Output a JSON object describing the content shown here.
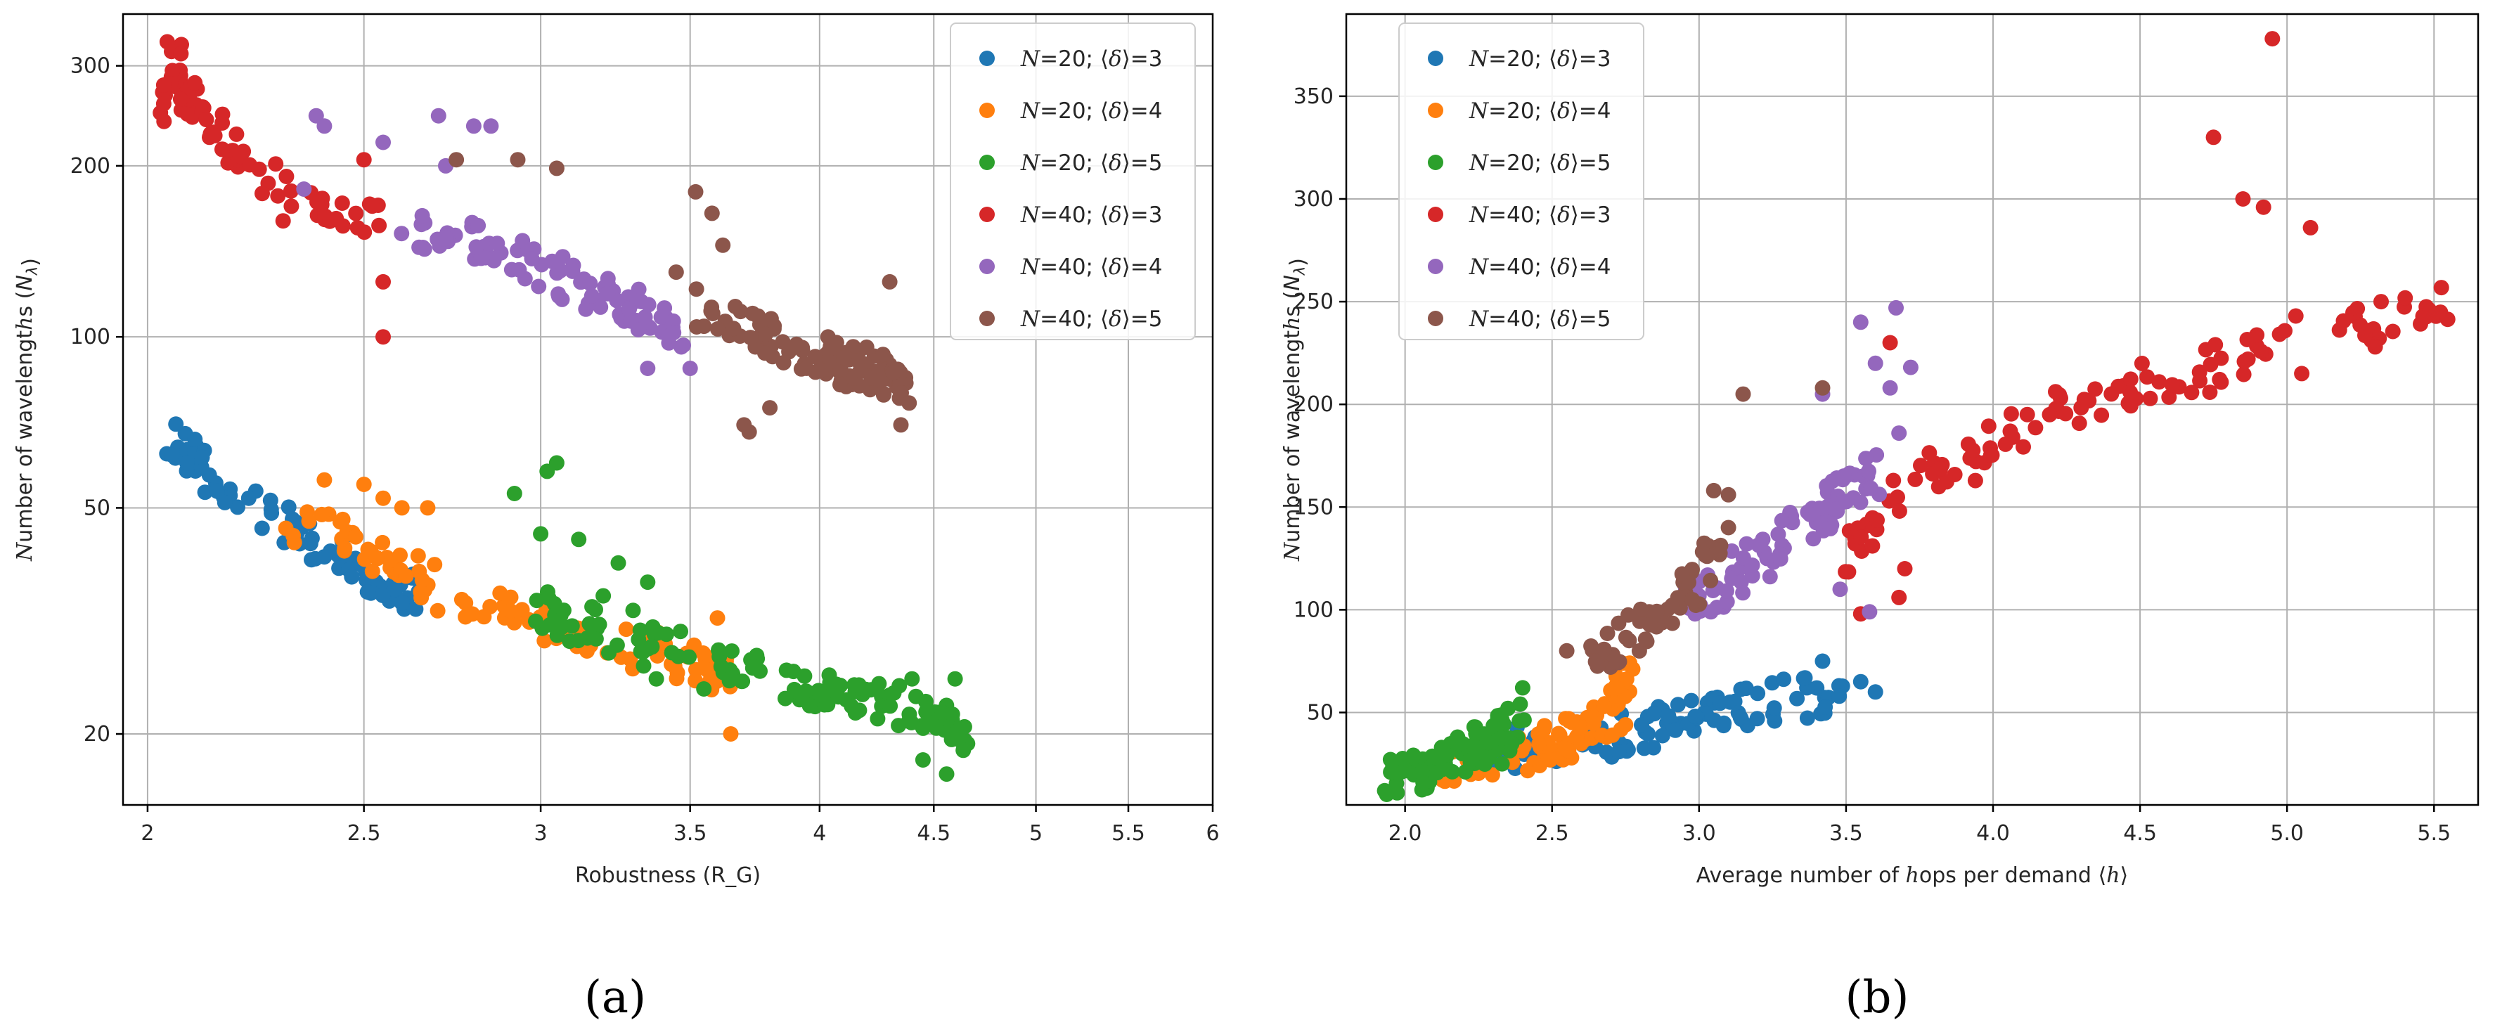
{
  "figure": {
    "panel_a_label": "(a)",
    "panel_b_label": "(b)"
  },
  "colors": {
    "N20_d3": "#1f77b4",
    "N20_d4": "#ff7f0e",
    "N20_d5": "#2ca02c",
    "N40_d3": "#d62728",
    "N40_d4": "#9467bd",
    "N40_d5": "#8c564b"
  },
  "chart_data": [
    {
      "type": "scatter",
      "panel": "(a)",
      "xscale": "log",
      "yscale": "log",
      "xlabel": "Robustness (R_G)",
      "ylabel": "Number of wavelengths (N_λ)",
      "xlim": [
        1.95,
        6.0
      ],
      "ylim": [
        15,
        370
      ],
      "xticks": [
        2,
        2.5,
        3,
        3.5,
        4,
        4.5,
        5,
        5.5,
        6
      ],
      "xtick_labels": [
        "2",
        "2.5",
        "3",
        "3.5",
        "4",
        "4.5",
        "5",
        "5.5",
        "6"
      ],
      "yticks": [
        20,
        50,
        100,
        200,
        300
      ],
      "ytick_labels": [
        "20",
        "50",
        "100",
        "200",
        "300"
      ],
      "grid": true,
      "legend_position": "top-right",
      "series": [
        {
          "name": "N=20; ⟨δ⟩=3",
          "color_key": "N20_d3",
          "count": 80,
          "anchors": [
            [
              2.05,
              62
            ],
            [
              2.08,
              65
            ],
            [
              2.1,
              60
            ],
            [
              2.15,
              55
            ],
            [
              2.2,
              52
            ],
            [
              2.3,
              47
            ],
            [
              2.35,
              44
            ],
            [
              2.4,
              42
            ],
            [
              2.45,
              40
            ],
            [
              2.5,
              38
            ],
            [
              2.55,
              37
            ],
            [
              2.6,
              36
            ],
            [
              2.63,
              35
            ]
          ],
          "outliers": [
            [
              2.05,
              62
            ],
            [
              2.1,
              66
            ],
            [
              2.22,
              52
            ],
            [
              2.4,
              41
            ],
            [
              2.6,
              34
            ]
          ]
        },
        {
          "name": "N=20; ⟨δ⟩=4",
          "color_key": "N20_d4",
          "count": 110,
          "anchors": [
            [
              2.3,
              48
            ],
            [
              2.45,
              44
            ],
            [
              2.55,
              40
            ],
            [
              2.65,
              37
            ],
            [
              2.75,
              35
            ],
            [
              2.9,
              33
            ],
            [
              3.05,
              31
            ],
            [
              3.2,
              30
            ],
            [
              3.35,
              28
            ],
            [
              3.5,
              27
            ],
            [
              3.6,
              26
            ],
            [
              3.66,
              26
            ]
          ],
          "outliers": [
            [
              2.4,
              56
            ],
            [
              2.5,
              55
            ],
            [
              2.55,
              52
            ],
            [
              2.6,
              50
            ],
            [
              2.67,
              50
            ],
            [
              3.6,
              32
            ],
            [
              3.65,
              20
            ],
            [
              2.45,
              42
            ]
          ]
        },
        {
          "name": "N=20; ⟨δ⟩=5",
          "color_key": "N20_d5",
          "count": 140,
          "anchors": [
            [
              3.0,
              33
            ],
            [
              3.2,
              30
            ],
            [
              3.4,
              28
            ],
            [
              3.6,
              27
            ],
            [
              3.8,
              25
            ],
            [
              4.0,
              24
            ],
            [
              4.2,
              23
            ],
            [
              4.4,
              22
            ],
            [
              4.55,
              21
            ],
            [
              4.65,
              20
            ]
          ],
          "outliers": [
            [
              2.92,
              53
            ],
            [
              3.02,
              58
            ],
            [
              3.05,
              60
            ],
            [
              3.0,
              45
            ],
            [
              3.12,
              44
            ],
            [
              3.25,
              40
            ],
            [
              3.35,
              37
            ],
            [
              3.38,
              25
            ],
            [
              3.55,
              24
            ],
            [
              4.45,
              18
            ],
            [
              4.56,
              17
            ],
            [
              4.6,
              25
            ],
            [
              4.4,
              25
            ],
            [
              3.3,
              33
            ],
            [
              3.2,
              35
            ]
          ]
        },
        {
          "name": "N=40; ⟨δ⟩=3",
          "color_key": "N40_d3",
          "count": 75,
          "anchors": [
            [
              2.03,
              250
            ],
            [
              2.05,
              310
            ],
            [
              2.1,
              260
            ],
            [
              2.15,
              230
            ],
            [
              2.2,
              205
            ],
            [
              2.3,
              185
            ],
            [
              2.4,
              170
            ],
            [
              2.5,
              160
            ],
            [
              2.55,
              155
            ]
          ],
          "outliers": [
            [
              2.05,
              318
            ],
            [
              2.07,
              315
            ],
            [
              2.5,
              205
            ],
            [
              2.55,
              125
            ],
            [
              2.55,
              100
            ],
            [
              2.3,
              160
            ],
            [
              2.1,
              280
            ]
          ]
        },
        {
          "name": "N=40; ⟨δ⟩=4",
          "color_key": "N40_d4",
          "count": 90,
          "anchors": [
            [
              2.6,
              160
            ],
            [
              2.75,
              150
            ],
            [
              2.9,
              142
            ],
            [
              3.0,
              132
            ],
            [
              3.1,
              125
            ],
            [
              3.2,
              118
            ],
            [
              3.3,
              112
            ],
            [
              3.4,
              106
            ],
            [
              3.5,
              100
            ]
          ],
          "outliers": [
            [
              2.38,
              245
            ],
            [
              2.4,
              235
            ],
            [
              2.55,
              220
            ],
            [
              2.7,
              245
            ],
            [
              2.8,
              235
            ],
            [
              2.85,
              235
            ],
            [
              2.72,
              200
            ],
            [
              3.35,
              88
            ],
            [
              3.5,
              88
            ],
            [
              2.35,
              182
            ]
          ]
        },
        {
          "name": "N=40; ⟨δ⟩=5",
          "color_key": "N40_d5",
          "count": 110,
          "anchors": [
            [
              3.5,
              115
            ],
            [
              3.65,
              105
            ],
            [
              3.8,
              100
            ],
            [
              3.95,
              95
            ],
            [
              4.1,
              90
            ],
            [
              4.2,
              87
            ],
            [
              4.3,
              85
            ],
            [
              4.4,
              82
            ]
          ],
          "outliers": [
            [
              2.75,
              205
            ],
            [
              2.93,
              205
            ],
            [
              3.05,
              198
            ],
            [
              3.52,
              180
            ],
            [
              3.58,
              165
            ],
            [
              3.62,
              145
            ],
            [
              3.7,
              70
            ],
            [
              3.72,
              68
            ],
            [
              4.35,
              70
            ],
            [
              4.3,
              125
            ],
            [
              3.45,
              130
            ],
            [
              3.8,
              75
            ]
          ]
        }
      ]
    },
    {
      "type": "scatter",
      "panel": "(b)",
      "xscale": "linear",
      "yscale": "linear",
      "xlabel": "Average number of hops per demand ⟨h⟩",
      "ylabel": "Number of wavelengths (N_λ)",
      "xlim": [
        1.8,
        5.65
      ],
      "ylim": [
        5,
        390
      ],
      "xticks": [
        2.0,
        2.5,
        3.0,
        3.5,
        4.0,
        4.5,
        5.0,
        5.5
      ],
      "xtick_labels": [
        "2.0",
        "2.5",
        "3.0",
        "3.5",
        "4.0",
        "4.5",
        "5.0",
        "5.5"
      ],
      "yticks": [
        50,
        100,
        150,
        200,
        250,
        300,
        350
      ],
      "ytick_labels": [
        "50",
        "100",
        "150",
        "200",
        "250",
        "300",
        "350"
      ],
      "grid": true,
      "legend_position": "top-left",
      "series": [
        {
          "name": "N=20; ⟨δ⟩=3",
          "color_key": "N20_d3",
          "count": 90,
          "anchors": [
            [
              2.3,
              32
            ],
            [
              2.5,
              34
            ],
            [
              2.7,
              38
            ],
            [
              2.9,
              44
            ],
            [
              3.1,
              52
            ],
            [
              3.3,
              57
            ],
            [
              3.5,
              58
            ]
          ],
          "outliers": [
            [
              3.42,
              75
            ],
            [
              3.55,
              65
            ],
            [
              3.6,
              60
            ]
          ]
        },
        {
          "name": "N=20; ⟨δ⟩=4",
          "color_key": "N20_d4",
          "count": 90,
          "anchors": [
            [
              2.1,
              20
            ],
            [
              2.3,
              27
            ],
            [
              2.45,
              33
            ],
            [
              2.55,
              38
            ],
            [
              2.65,
              43
            ],
            [
              2.72,
              50
            ],
            [
              2.75,
              68
            ]
          ],
          "outliers": [
            [
              2.74,
              74
            ],
            [
              2.72,
              62
            ],
            [
              2.75,
              44
            ]
          ]
        },
        {
          "name": "N=20; ⟨δ⟩=5",
          "color_key": "N20_d5",
          "count": 90,
          "anchors": [
            [
              1.95,
              18
            ],
            [
              2.05,
              22
            ],
            [
              2.15,
              26
            ],
            [
              2.25,
              32
            ],
            [
              2.32,
              40
            ],
            [
              2.38,
              48
            ]
          ],
          "outliers": [
            [
              2.35,
              52
            ],
            [
              2.4,
              62
            ],
            [
              2.33,
              25
            ]
          ]
        },
        {
          "name": "N=40; ⟨δ⟩=3",
          "color_key": "N40_d3",
          "count": 120,
          "anchors": [
            [
              3.5,
              120
            ],
            [
              3.7,
              160
            ],
            [
              3.9,
              172
            ],
            [
              4.1,
              190
            ],
            [
              4.3,
              200
            ],
            [
              4.5,
              210
            ],
            [
              4.7,
              215
            ],
            [
              4.9,
              225
            ],
            [
              5.3,
              240
            ],
            [
              5.55,
              252
            ]
          ],
          "outliers": [
            [
              4.95,
              378
            ],
            [
              4.75,
              330
            ],
            [
              4.85,
              300
            ],
            [
              4.92,
              296
            ],
            [
              5.08,
              286
            ],
            [
              3.65,
              230
            ],
            [
              3.68,
              106
            ],
            [
              3.7,
              120
            ],
            [
              3.55,
              98
            ],
            [
              5.03,
              243
            ],
            [
              5.32,
              250
            ],
            [
              5.3,
              228
            ],
            [
              5.05,
              215
            ]
          ]
        },
        {
          "name": "N=40; ⟨δ⟩=4",
          "color_key": "N40_d4",
          "count": 85,
          "anchors": [
            [
              2.95,
              100
            ],
            [
              3.1,
              115
            ],
            [
              3.2,
              125
            ],
            [
              3.3,
              135
            ],
            [
              3.4,
              145
            ],
            [
              3.5,
              158
            ],
            [
              3.6,
              168
            ]
          ],
          "outliers": [
            [
              3.67,
              247
            ],
            [
              3.55,
              240
            ],
            [
              3.6,
              220
            ],
            [
              3.65,
              208
            ],
            [
              3.42,
              205
            ],
            [
              3.72,
              218
            ],
            [
              3.58,
              99
            ],
            [
              3.48,
              110
            ],
            [
              3.68,
              186
            ]
          ]
        },
        {
          "name": "N=40; ⟨δ⟩=5",
          "color_key": "N40_d5",
          "count": 55,
          "anchors": [
            [
              2.6,
              75
            ],
            [
              2.7,
              82
            ],
            [
              2.8,
              90
            ],
            [
              2.9,
              100
            ],
            [
              3.0,
              115
            ],
            [
              3.05,
              130
            ]
          ],
          "outliers": [
            [
              3.15,
              205
            ],
            [
              3.42,
              208
            ],
            [
              3.05,
              158
            ],
            [
              3.1,
              156
            ],
            [
              2.55,
              80
            ],
            [
              3.1,
              140
            ]
          ]
        }
      ]
    }
  ]
}
